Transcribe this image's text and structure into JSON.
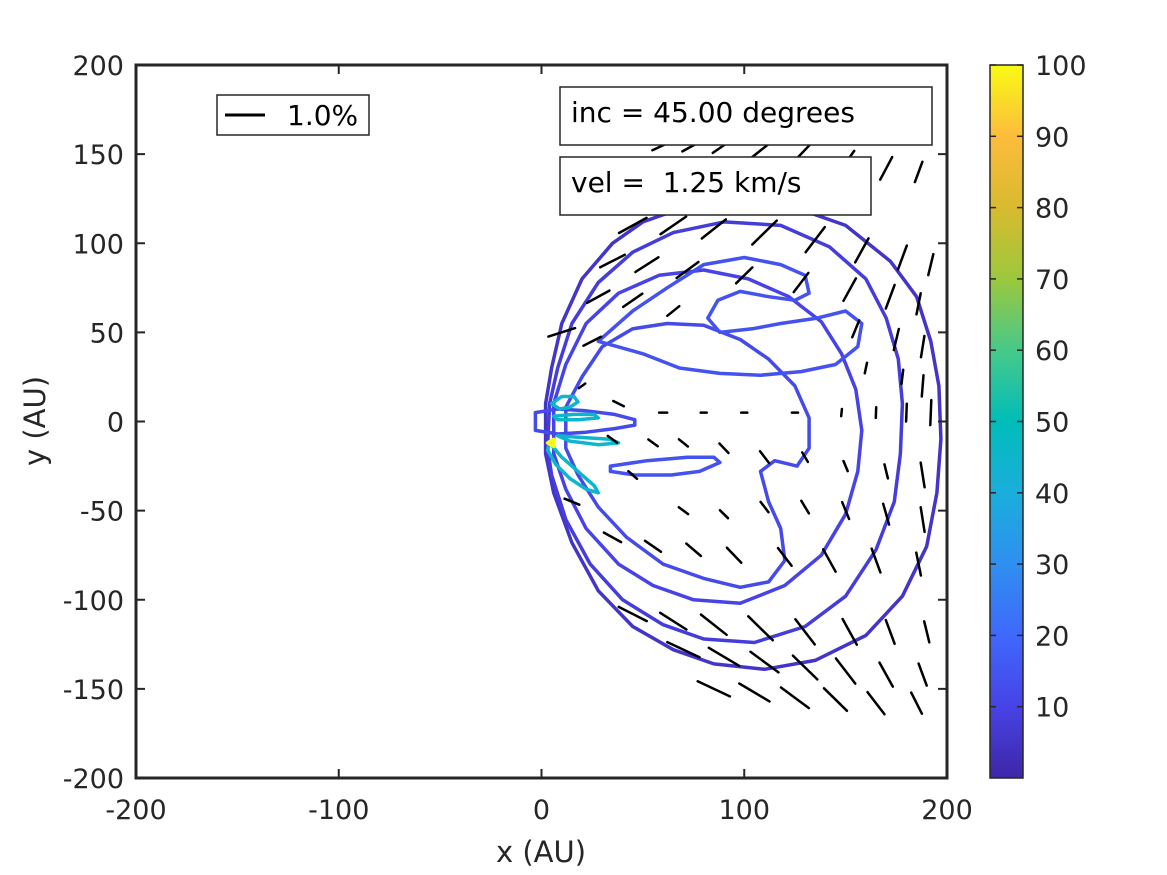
{
  "chart_data": {
    "type": "contour",
    "xlabel": "x (AU)",
    "ylabel": "y (AU)",
    "xlim": [
      -200,
      200
    ],
    "ylim": [
      -200,
      200
    ],
    "xticks": [
      "-200",
      "-100",
      "0",
      "100",
      "200"
    ],
    "yticks": [
      "200",
      "150",
      "100",
      "50",
      "0",
      "-50",
      "-100",
      "-150",
      "-200"
    ],
    "colorbar": {
      "range": [
        0,
        100
      ],
      "ticks": [
        "100",
        "90",
        "80",
        "70",
        "60",
        "50",
        "40",
        "30",
        "20",
        "10"
      ],
      "colormap": "parula"
    },
    "annotations": {
      "inc": "inc = 45.00 degrees",
      "vel": "vel =  1.25 km/s",
      "legend": "1.0%"
    },
    "contour_levels": [
      5,
      8,
      10,
      12,
      14,
      45,
      100
    ],
    "contours": [
      {
        "level": 5,
        "points": [
          [
            2,
            10
          ],
          [
            5,
            30
          ],
          [
            10,
            55
          ],
          [
            20,
            80
          ],
          [
            35,
            100
          ],
          [
            50,
            112
          ],
          [
            70,
            120
          ],
          [
            95,
            124
          ],
          [
            120,
            122
          ],
          [
            150,
            110
          ],
          [
            172,
            90
          ],
          [
            185,
            70
          ],
          [
            192,
            45
          ],
          [
            196,
            20
          ],
          [
            197,
            -10
          ],
          [
            195,
            -40
          ],
          [
            190,
            -70
          ],
          [
            178,
            -98
          ],
          [
            160,
            -120
          ],
          [
            135,
            -134
          ],
          [
            110,
            -139
          ],
          [
            85,
            -136
          ],
          [
            65,
            -128
          ],
          [
            45,
            -115
          ],
          [
            28,
            -95
          ],
          [
            15,
            -68
          ],
          [
            6,
            -40
          ],
          [
            2,
            -18
          ]
        ]
      },
      {
        "level": 8,
        "points": [
          [
            4,
            10
          ],
          [
            8,
            30
          ],
          [
            15,
            55
          ],
          [
            28,
            78
          ],
          [
            45,
            95
          ],
          [
            65,
            106
          ],
          [
            90,
            112
          ],
          [
            118,
            110
          ],
          [
            142,
            98
          ],
          [
            160,
            80
          ],
          [
            170,
            58
          ],
          [
            176,
            35
          ],
          [
            178,
            10
          ],
          [
            177,
            -18
          ],
          [
            174,
            -45
          ],
          [
            165,
            -72
          ],
          [
            150,
            -98
          ],
          [
            130,
            -115
          ],
          [
            105,
            -124
          ],
          [
            80,
            -122
          ],
          [
            60,
            -114
          ],
          [
            40,
            -100
          ],
          [
            24,
            -80
          ],
          [
            12,
            -55
          ],
          [
            5,
            -30
          ],
          [
            3,
            -15
          ]
        ]
      },
      {
        "level": 10,
        "points": [
          [
            6,
            10
          ],
          [
            12,
            32
          ],
          [
            22,
            55
          ],
          [
            38,
            72
          ],
          [
            58,
            82
          ],
          [
            80,
            85
          ],
          [
            102,
            80
          ],
          [
            122,
            70
          ],
          [
            138,
            56
          ],
          [
            148,
            38
          ],
          [
            155,
            18
          ],
          [
            158,
            -5
          ],
          [
            156,
            -28
          ],
          [
            150,
            -52
          ],
          [
            138,
            -75
          ],
          [
            120,
            -92
          ],
          [
            98,
            -102
          ],
          [
            75,
            -100
          ],
          [
            55,
            -92
          ],
          [
            38,
            -80
          ],
          [
            22,
            -60
          ],
          [
            12,
            -38
          ],
          [
            6,
            -18
          ]
        ]
      },
      {
        "level": 12,
        "points": [
          [
            12,
            8
          ],
          [
            20,
            25
          ],
          [
            30,
            42
          ],
          [
            45,
            52
          ],
          [
            62,
            55
          ],
          [
            80,
            54
          ],
          [
            98,
            46
          ],
          [
            112,
            35
          ],
          [
            125,
            20
          ],
          [
            132,
            2
          ],
          [
            132,
            -15
          ],
          [
            126,
            -25
          ],
          [
            115,
            -22
          ],
          [
            108,
            -28
          ],
          [
            112,
            -45
          ],
          [
            118,
            -60
          ],
          [
            120,
            -78
          ],
          [
            112,
            -90
          ],
          [
            98,
            -93
          ],
          [
            80,
            -88
          ],
          [
            60,
            -80
          ],
          [
            42,
            -65
          ],
          [
            28,
            -48
          ],
          [
            18,
            -30
          ],
          [
            12,
            -15
          ]
        ]
      },
      {
        "level": 14,
        "points": [
          [
            28,
            45
          ],
          [
            45,
            62
          ],
          [
            62,
            75
          ],
          [
            80,
            88
          ],
          [
            100,
            92
          ],
          [
            118,
            88
          ],
          [
            130,
            82
          ],
          [
            132,
            72
          ],
          [
            125,
            68
          ],
          [
            112,
            70
          ],
          [
            98,
            73
          ],
          [
            87,
            68
          ],
          [
            82,
            58
          ],
          [
            88,
            50
          ],
          [
            104,
            52
          ],
          [
            118,
            55
          ],
          [
            136,
            58
          ],
          [
            150,
            62
          ],
          [
            158,
            55
          ],
          [
            156,
            42
          ],
          [
            145,
            32
          ],
          [
            128,
            28
          ],
          [
            108,
            26
          ],
          [
            88,
            27
          ],
          [
            68,
            30
          ],
          [
            50,
            38
          ]
        ]
      },
      {
        "level": 14,
        "points": [
          [
            34,
            -25
          ],
          [
            52,
            -22
          ],
          [
            72,
            -20
          ],
          [
            85,
            -20
          ],
          [
            88,
            -23
          ],
          [
            78,
            -28
          ],
          [
            64,
            -30
          ],
          [
            46,
            -30
          ],
          [
            34,
            -28
          ]
        ]
      },
      {
        "level": 12,
        "points": [
          [
            -3,
            5
          ],
          [
            8,
            7
          ],
          [
            22,
            6
          ],
          [
            36,
            4
          ],
          [
            46,
            1
          ],
          [
            46,
            -2
          ],
          [
            36,
            -4
          ],
          [
            22,
            -6
          ],
          [
            8,
            -7
          ],
          [
            -3,
            -5
          ]
        ]
      },
      {
        "level": 45,
        "points": [
          [
            4,
            -12
          ],
          [
            10,
            -20
          ],
          [
            18,
            -28
          ],
          [
            26,
            -36
          ],
          [
            28,
            -40
          ],
          [
            22,
            -38
          ],
          [
            14,
            -32
          ],
          [
            7,
            -24
          ],
          [
            3,
            -16
          ]
        ]
      },
      {
        "level": 45,
        "points": [
          [
            8,
            -8
          ],
          [
            20,
            -9
          ],
          [
            34,
            -10
          ],
          [
            38,
            -12
          ],
          [
            28,
            -13
          ],
          [
            14,
            -11
          ]
        ]
      },
      {
        "level": 45,
        "points": [
          [
            5,
            10
          ],
          [
            10,
            14
          ],
          [
            16,
            14
          ],
          [
            18,
            11
          ],
          [
            14,
            8
          ],
          [
            9,
            7
          ]
        ]
      },
      {
        "level": 45,
        "points": [
          [
            6,
            3
          ],
          [
            16,
            4
          ],
          [
            26,
            4
          ],
          [
            28,
            2
          ],
          [
            18,
            1
          ],
          [
            8,
            1
          ]
        ]
      },
      {
        "level": 100,
        "points": [
          [
            3,
            -12
          ],
          [
            6,
            -10
          ],
          [
            6,
            -14
          ]
        ]
      }
    ],
    "polarization_vectors": [
      [
        60,
        155,
        12,
        28
      ],
      [
        75,
        155,
        13,
        32
      ],
      [
        90,
        155,
        14,
        38
      ],
      [
        108,
        152,
        16,
        42
      ],
      [
        128,
        150,
        18,
        50
      ],
      [
        150,
        145,
        16,
        58
      ],
      [
        170,
        142,
        14,
        65
      ],
      [
        186,
        140,
        12,
        72
      ],
      [
        45,
        110,
        16,
        32
      ],
      [
        65,
        110,
        16,
        38
      ],
      [
        85,
        108,
        16,
        42
      ],
      [
        110,
        106,
        18,
        48
      ],
      [
        135,
        102,
        17,
        56
      ],
      [
        158,
        96,
        15,
        64
      ],
      [
        178,
        92,
        14,
        72
      ],
      [
        192,
        88,
        12,
        78
      ],
      [
        35,
        90,
        14,
        30
      ],
      [
        52,
        88,
        14,
        36
      ],
      [
        72,
        85,
        14,
        40
      ],
      [
        100,
        82,
        12,
        48
      ],
      [
        128,
        78,
        13,
        56
      ],
      [
        152,
        74,
        14,
        64
      ],
      [
        172,
        70,
        14,
        72
      ],
      [
        186,
        66,
        12,
        80
      ],
      [
        28,
        70,
        13,
        32
      ],
      [
        45,
        68,
        12,
        38
      ],
      [
        65,
        62,
        8,
        42
      ],
      [
        155,
        52,
        10,
        70
      ],
      [
        175,
        46,
        12,
        78
      ],
      [
        188,
        42,
        12,
        82
      ],
      [
        10,
        50,
        14,
        20
      ],
      [
        25,
        45,
        10,
        30
      ],
      [
        160,
        30,
        6,
        80
      ],
      [
        178,
        25,
        8,
        84
      ],
      [
        188,
        20,
        12,
        86
      ],
      [
        20,
        20,
        4,
        40
      ],
      [
        38,
        10,
        6,
        -30
      ],
      [
        60,
        5,
        4,
        0
      ],
      [
        80,
        5,
        3,
        0
      ],
      [
        100,
        5,
        3,
        0
      ],
      [
        125,
        5,
        3,
        0
      ],
      [
        148,
        5,
        4,
        85
      ],
      [
        165,
        5,
        6,
        88
      ],
      [
        180,
        5,
        10,
        88
      ],
      [
        192,
        5,
        14,
        88
      ],
      [
        35,
        -10,
        6,
        -40
      ],
      [
        55,
        -12,
        6,
        -40
      ],
      [
        70,
        -12,
        6,
        -42
      ],
      [
        90,
        -15,
        7,
        -50
      ],
      [
        110,
        -20,
        8,
        -56
      ],
      [
        130,
        -20,
        6,
        -62
      ],
      [
        150,
        -25,
        6,
        -70
      ],
      [
        170,
        -28,
        8,
        -78
      ],
      [
        188,
        -30,
        14,
        -82
      ],
      [
        45,
        -30,
        6,
        -45
      ],
      [
        70,
        -50,
        6,
        -40
      ],
      [
        90,
        -52,
        6,
        -48
      ],
      [
        110,
        -48,
        7,
        -56
      ],
      [
        130,
        -48,
        8,
        -62
      ],
      [
        150,
        -50,
        10,
        -70
      ],
      [
        170,
        -52,
        12,
        -76
      ],
      [
        188,
        -55,
        14,
        -82
      ],
      [
        15,
        -45,
        8,
        -25
      ],
      [
        35,
        -65,
        10,
        -32
      ],
      [
        55,
        -70,
        10,
        -38
      ],
      [
        75,
        -72,
        10,
        -44
      ],
      [
        95,
        -75,
        11,
        -50
      ],
      [
        120,
        -76,
        12,
        -56
      ],
      [
        142,
        -78,
        14,
        -64
      ],
      [
        165,
        -78,
        14,
        -72
      ],
      [
        186,
        -80,
        13,
        -80
      ],
      [
        45,
        -108,
        16,
        -30
      ],
      [
        65,
        -112,
        16,
        -36
      ],
      [
        85,
        -114,
        17,
        -42
      ],
      [
        108,
        -116,
        18,
        -48
      ],
      [
        130,
        -118,
        17,
        -56
      ],
      [
        152,
        -118,
        16,
        -64
      ],
      [
        172,
        -118,
        14,
        -72
      ],
      [
        190,
        -118,
        12,
        -78
      ],
      [
        70,
        -128,
        18,
        -28
      ],
      [
        90,
        -132,
        18,
        -34
      ],
      [
        110,
        -135,
        18,
        -40
      ],
      [
        130,
        -138,
        18,
        -48
      ],
      [
        150,
        -140,
        17,
        -56
      ],
      [
        170,
        -142,
        15,
        -64
      ],
      [
        188,
        -142,
        13,
        -72
      ],
      [
        85,
        -150,
        18,
        -28
      ],
      [
        105,
        -152,
        18,
        -34
      ],
      [
        125,
        -155,
        18,
        -40
      ],
      [
        145,
        -156,
        17,
        -48
      ],
      [
        165,
        -158,
        15,
        -56
      ],
      [
        185,
        -158,
        13,
        -66
      ]
    ]
  }
}
